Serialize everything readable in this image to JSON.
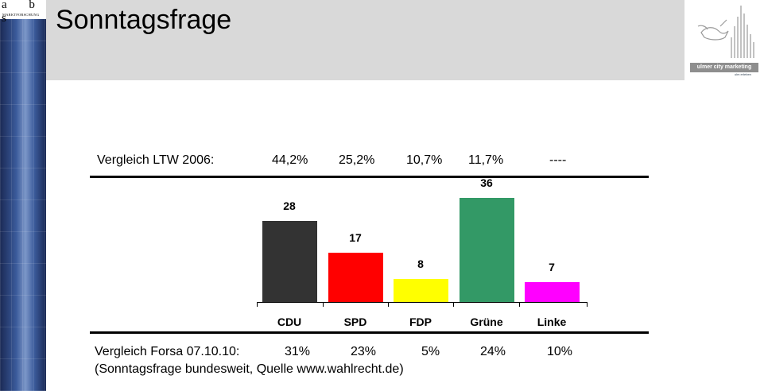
{
  "header": {
    "title": "Sonntagsfrage"
  },
  "logos": {
    "left_logo_letters": "a b s",
    "left_logo_subtitle": "MARKTFORSCHUNG",
    "right_logo_name": "ulmer city marketing",
    "right_logo_tagline": "ulm erleben"
  },
  "ltw_row": {
    "label": "Vergleich LTW 2006:",
    "values": [
      "44,2%",
      "25,2%",
      "10,7%",
      "11,7%",
      "----"
    ]
  },
  "forsa_row": {
    "label": "Vergleich Forsa 07.10.10:",
    "values": [
      "31%",
      "23%",
      "5%",
      "24%",
      "10%"
    ]
  },
  "source_note": "(Sonntagsfrage bundesweit, Quelle www.wahlrecht.de)",
  "colors": {
    "CDU": "#333333",
    "SPD": "#ff0000",
    "FDP": "#ffff00",
    "Grüne": "#339966",
    "Linke": "#ff00ff",
    "header_band": "#d9d9d9"
  },
  "chart_data": {
    "type": "bar",
    "categories": [
      "CDU",
      "SPD",
      "FDP",
      "Grüne",
      "Linke"
    ],
    "values": [
      28,
      17,
      8,
      36,
      7
    ],
    "data_labels": [
      "28",
      "17",
      "8",
      "36",
      "7"
    ],
    "ylim": [
      0,
      36
    ],
    "grid": false,
    "legend": "none"
  }
}
